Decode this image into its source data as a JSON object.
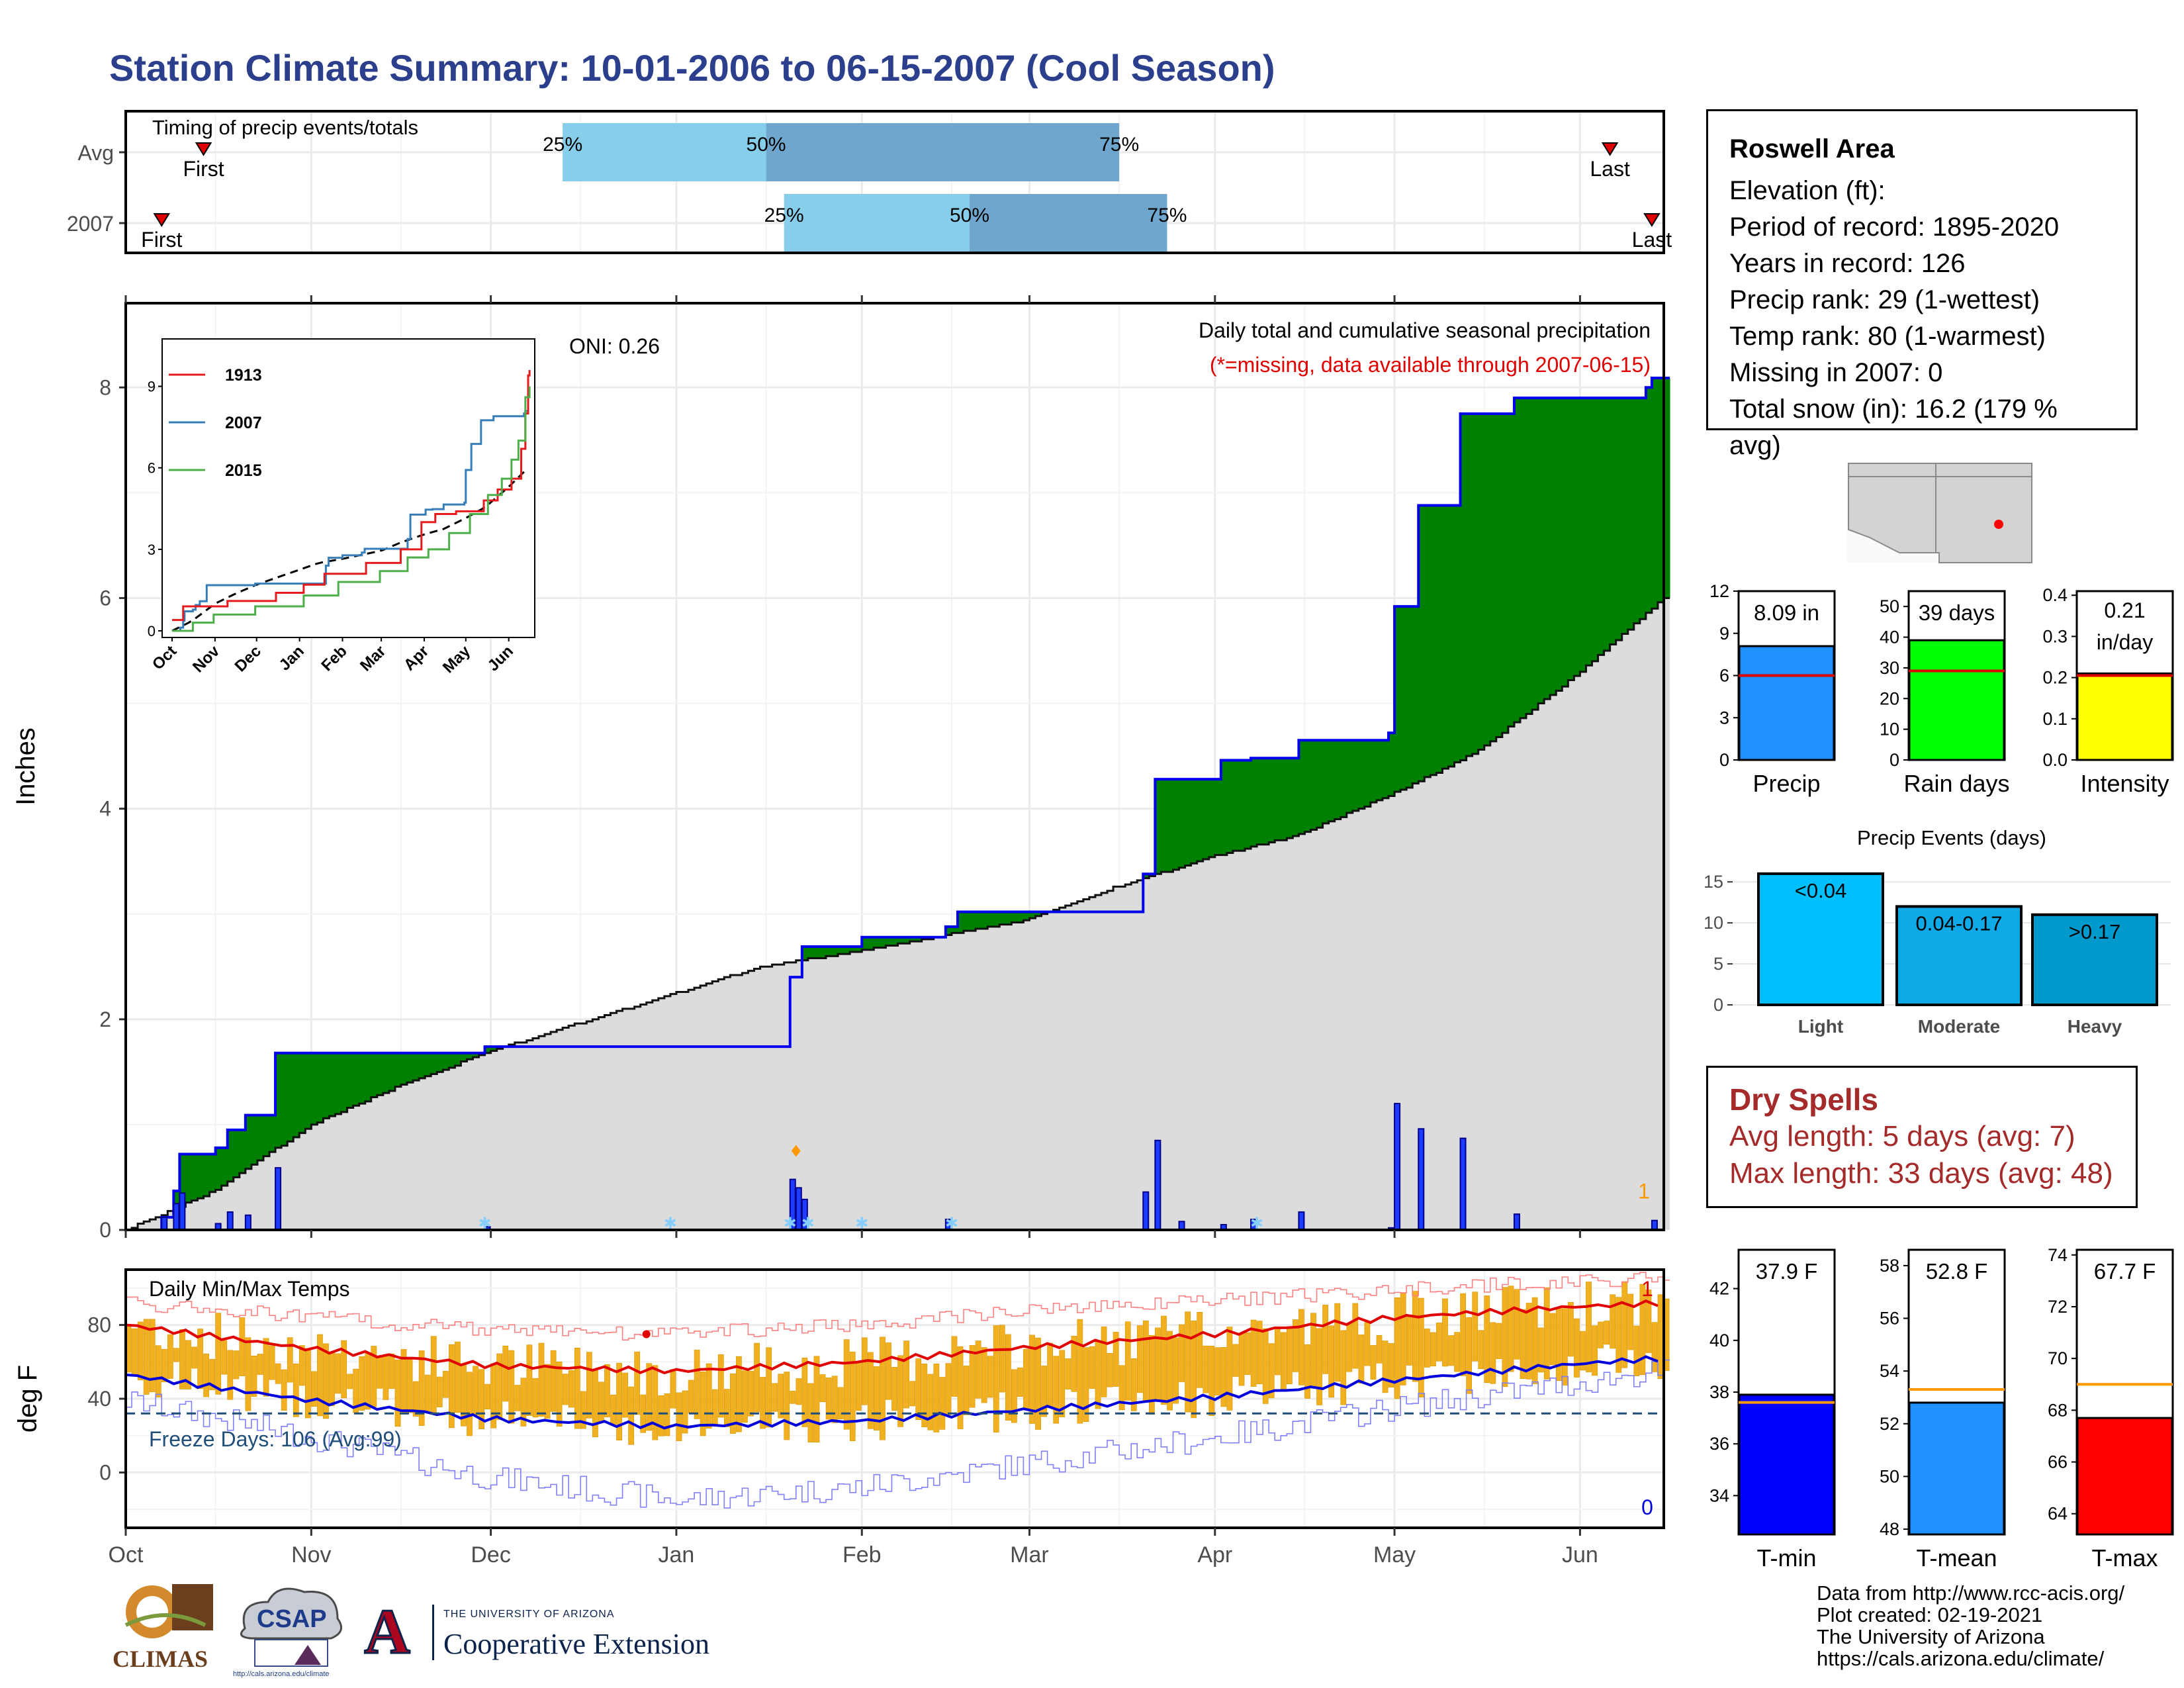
{
  "title": "Station Climate Summary: 10-01-2006 to 06-15-2007 (Cool Season)",
  "timing": {
    "label": "Timing of precip events/totals",
    "rows": [
      {
        "name": "Avg",
        "first": "2006-10-14",
        "p25": "2006-12-13",
        "p50": "2007-01-16",
        "p75": "2007-03-16",
        "last": "2007-06-06"
      },
      {
        "name": "2007",
        "first": "2006-10-07",
        "p25": "2007-01-19",
        "p50": "2007-02-19",
        "p75": "2007-03-24",
        "last": "2007-06-13"
      }
    ],
    "first_label": "First",
    "last_label": "Last",
    "pct_labels": [
      "25%",
      "50%",
      "75%"
    ]
  },
  "precip_panel": {
    "ylabel": "Inches",
    "oni": "ONI: 0.26",
    "desc": "Daily total and cumulative seasonal precipitation",
    "missing_note": "(*=missing, data available through 2007-06-15)",
    "corner_count": "1",
    "yticks": [
      "0",
      "2",
      "4",
      "6",
      "8"
    ]
  },
  "inset": {
    "legend": [
      "1913",
      "2007",
      "2015"
    ],
    "yticks": [
      "0",
      "3",
      "6",
      "9"
    ],
    "xticks": [
      "Oct",
      "Nov",
      "Dec",
      "Jan",
      "Feb",
      "Mar",
      "Apr",
      "May",
      "Jun"
    ]
  },
  "temp_panel": {
    "ylabel": "deg F",
    "label": "Daily Min/Max Temps",
    "freeze": "Freeze Days: 106 (Avg:99)",
    "count_top": "1",
    "count_bottom": "0",
    "yticks": [
      "0",
      "40",
      "80"
    ]
  },
  "months": [
    "Oct",
    "Nov",
    "Dec",
    "Jan",
    "Feb",
    "Mar",
    "Apr",
    "May",
    "Jun"
  ],
  "info": {
    "name": "Roswell Area",
    "lines": [
      "Elevation (ft):",
      "Period of record: 1895-2020",
      "Years in record: 126",
      "Precip rank: 29 (1-wettest)",
      "Temp rank: 80 (1-warmest)",
      "Missing in 2007: 0",
      "Total snow (in): 16.2 (179 % avg)"
    ]
  },
  "summary_bars": [
    {
      "name": "Precip",
      "label": "8.09 in",
      "value": 8.09,
      "avg": 6.0,
      "max": 12,
      "ticks": [
        "0",
        "3",
        "6",
        "9",
        "12"
      ],
      "color": "#1e90ff"
    },
    {
      "name": "Rain days",
      "label": "39 days",
      "value": 39,
      "avg": 29,
      "max": 55,
      "ticks": [
        "0",
        "10",
        "20",
        "30",
        "40",
        "50"
      ],
      "color": "#00ff00"
    },
    {
      "name": "Intensity",
      "label": "0.21 in/day",
      "label1": "0.21",
      "label2": "in/day",
      "value": 0.21,
      "avg": 0.205,
      "max": 0.41,
      "ticks": [
        "0.0",
        "0.1",
        "0.2",
        "0.3",
        "0.4"
      ],
      "color": "#ffff00"
    }
  ],
  "events": {
    "title": "Precip Events (days)",
    "bars": [
      {
        "name": "Light",
        "label": "<0.04",
        "value": 16,
        "color": "#00bfff"
      },
      {
        "name": "Moderate",
        "label": "0.04-0.17",
        "value": 12,
        "color": "#10a9e8"
      },
      {
        "name": "Heavy",
        "label": ">0.17",
        "value": 11,
        "color": "#0099cc"
      }
    ],
    "ticks": [
      "0",
      "5",
      "10",
      "15"
    ]
  },
  "dry_spells": {
    "title": "Dry Spells",
    "avg": "Avg length: 5 days (avg: 7)",
    "max": "Max length: 33 days (avg: 48)"
  },
  "temp_bars": [
    {
      "name": "T-min",
      "label": "37.9 F",
      "value": 37.9,
      "avg": 37.6,
      "min": 32.5,
      "max": 43.5,
      "ticks": [
        "34",
        "36",
        "38",
        "40",
        "42"
      ],
      "color": "#0000ff"
    },
    {
      "name": "T-mean",
      "label": "52.8 F",
      "value": 52.8,
      "avg": 53.3,
      "min": 47.8,
      "max": 58.6,
      "ticks": [
        "48",
        "50",
        "52",
        "54",
        "56",
        "58"
      ],
      "color": "#1e90ff"
    },
    {
      "name": "T-max",
      "label": "67.7 F",
      "value": 67.7,
      "avg": 69.0,
      "min": 63.2,
      "max": 74.2,
      "ticks": [
        "64",
        "66",
        "68",
        "70",
        "72",
        "74"
      ],
      "color": "#ff0000"
    }
  ],
  "credits": [
    "Data from http://www.rcc-acis.org/",
    "Plot created: 02-19-2021",
    "The University of Arizona",
    "https://cals.arizona.edu/climate/"
  ],
  "logos": {
    "climas": "CLIMAS",
    "csap": "CSAP",
    "csap_url": "http://cals.arizona.edu/climate",
    "ua_small": "THE UNIVERSITY OF ARIZONA",
    "ua_big": "Cooperative Extension",
    "ua_mark": "A"
  },
  "chart_data": [
    {
      "type": "area",
      "title": "Daily total and cumulative seasonal precipitation",
      "ylabel": "Inches",
      "ylim": [
        0,
        8.8
      ],
      "x_range": [
        "2006-10-01",
        "2007-06-15"
      ],
      "cumulative_2007": [
        [
          "2006-10-01",
          0
        ],
        [
          "2006-10-07",
          0.12
        ],
        [
          "2006-10-09",
          0.37
        ],
        [
          "2006-10-10",
          0.72
        ],
        [
          "2006-10-16",
          0.78
        ],
        [
          "2006-10-18",
          0.95
        ],
        [
          "2006-10-21",
          1.09
        ],
        [
          "2006-10-26",
          1.68
        ],
        [
          "2006-11-30",
          1.74
        ],
        [
          "2007-01-02",
          1.74
        ],
        [
          "2007-01-20",
          2.4
        ],
        [
          "2007-01-22",
          2.69
        ],
        [
          "2007-02-01",
          2.78
        ],
        [
          "2007-02-15",
          2.88
        ],
        [
          "2007-02-17",
          3.02
        ],
        [
          "2007-03-20",
          3.38
        ],
        [
          "2007-03-22",
          4.28
        ],
        [
          "2007-04-02",
          4.46
        ],
        [
          "2007-04-07",
          4.48
        ],
        [
          "2007-04-15",
          4.65
        ],
        [
          "2007-04-30",
          4.72
        ],
        [
          "2007-05-01",
          5.92
        ],
        [
          "2007-05-05",
          6.88
        ],
        [
          "2007-05-12",
          7.75
        ],
        [
          "2007-05-21",
          7.9
        ],
        [
          "2007-06-12",
          8.0
        ],
        [
          "2007-06-13",
          8.09
        ],
        [
          "2007-06-15",
          8.09
        ]
      ],
      "cumulative_avg": [
        [
          "2006-10-01",
          0
        ],
        [
          "2006-10-15",
          0.35
        ],
        [
          "2006-11-01",
          1.0
        ],
        [
          "2006-11-15",
          1.35
        ],
        [
          "2006-12-01",
          1.7
        ],
        [
          "2006-12-15",
          1.95
        ],
        [
          "2007-01-01",
          2.25
        ],
        [
          "2007-01-15",
          2.5
        ],
        [
          "2007-02-01",
          2.65
        ],
        [
          "2007-02-15",
          2.8
        ],
        [
          "2007-03-01",
          2.95
        ],
        [
          "2007-03-15",
          3.25
        ],
        [
          "2007-04-01",
          3.55
        ],
        [
          "2007-04-15",
          3.75
        ],
        [
          "2007-05-01",
          4.15
        ],
        [
          "2007-05-15",
          4.55
        ],
        [
          "2007-06-01",
          5.3
        ],
        [
          "2007-06-15",
          6.0
        ]
      ],
      "daily_2007": [
        [
          "2006-10-07",
          0.12
        ],
        [
          "2006-10-09",
          0.25
        ],
        [
          "2006-10-10",
          0.35
        ],
        [
          "2006-10-16",
          0.06
        ],
        [
          "2006-10-18",
          0.17
        ],
        [
          "2006-10-21",
          0.14
        ],
        [
          "2006-10-26",
          0.59
        ],
        [
          "2006-11-30",
          0.03
        ],
        [
          "2007-01-20",
          0.48
        ],
        [
          "2007-01-21",
          0.4
        ],
        [
          "2007-01-22",
          0.29
        ],
        [
          "2007-02-15",
          0.1
        ],
        [
          "2007-03-20",
          0.36
        ],
        [
          "2007-03-22",
          0.85
        ],
        [
          "2007-03-26",
          0.08
        ],
        [
          "2007-04-02",
          0.05
        ],
        [
          "2007-04-07",
          0.1
        ],
        [
          "2007-04-15",
          0.17
        ],
        [
          "2007-04-30",
          0.02
        ],
        [
          "2007-05-01",
          1.2
        ],
        [
          "2007-05-05",
          0.96
        ],
        [
          "2007-05-12",
          0.87
        ],
        [
          "2007-05-21",
          0.15
        ],
        [
          "2007-06-13",
          0.09
        ]
      ]
    },
    {
      "type": "line",
      "title": "Daily Min/Max Temps",
      "ylabel": "deg F",
      "ylim": [
        -30,
        110
      ],
      "freeze_line": 32,
      "avg_tmax": [
        [
          "2006-10-01",
          80
        ],
        [
          "2006-11-01",
          67
        ],
        [
          "2006-12-01",
          58
        ],
        [
          "2007-01-01",
          55
        ],
        [
          "2007-02-01",
          60
        ],
        [
          "2007-03-01",
          68
        ],
        [
          "2007-04-01",
          75
        ],
        [
          "2007-05-01",
          84
        ],
        [
          "2007-06-01",
          90
        ],
        [
          "2007-06-15",
          92
        ]
      ],
      "avg_tmin": [
        [
          "2006-10-01",
          53
        ],
        [
          "2006-11-01",
          39
        ],
        [
          "2006-12-01",
          29
        ],
        [
          "2007-01-01",
          25
        ],
        [
          "2007-02-01",
          28
        ],
        [
          "2007-03-01",
          34
        ],
        [
          "2007-04-01",
          41
        ],
        [
          "2007-05-01",
          50
        ],
        [
          "2007-06-01",
          59
        ],
        [
          "2007-06-15",
          62
        ]
      ],
      "record_high_envelope": [
        [
          "2006-10-01",
          96
        ],
        [
          "2006-11-01",
          88
        ],
        [
          "2006-12-01",
          81
        ],
        [
          "2007-01-01",
          79
        ],
        [
          "2007-02-01",
          84
        ],
        [
          "2007-03-01",
          92
        ],
        [
          "2007-04-01",
          97
        ],
        [
          "2007-05-01",
          103
        ],
        [
          "2007-06-15",
          110
        ]
      ],
      "record_low_envelope": [
        [
          "2006-10-01",
          32
        ],
        [
          "2006-11-01",
          12
        ],
        [
          "2006-12-01",
          -10
        ],
        [
          "2007-01-01",
          -22
        ],
        [
          "2007-02-01",
          -15
        ],
        [
          "2007-03-01",
          -2
        ],
        [
          "2007-04-01",
          12
        ],
        [
          "2007-05-01",
          28
        ],
        [
          "2007-06-15",
          48
        ]
      ]
    }
  ]
}
